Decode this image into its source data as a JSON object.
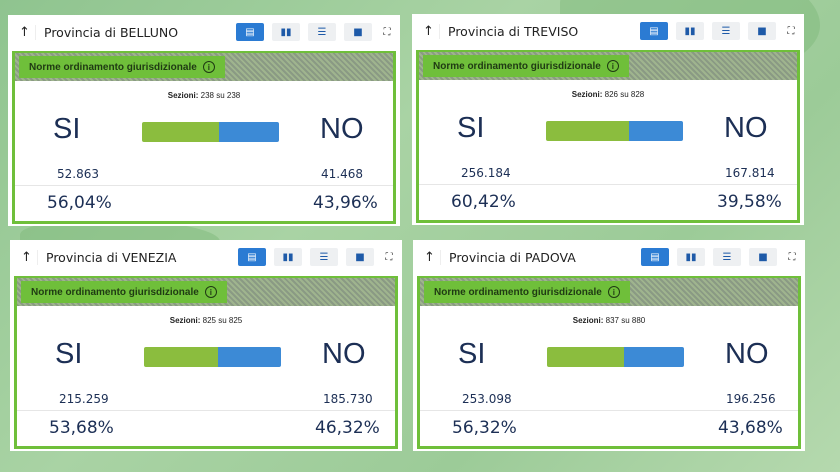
{
  "buttons": {
    "arrow": "↑",
    "full": "⛶"
  },
  "panels": [
    {
      "title": "Provincia di BELLUNO",
      "tag": "Norme ordinamento giurisdizionale",
      "sez_label": "Sezioni:",
      "sez_value": "238 su 238",
      "si": "SI",
      "no": "NO",
      "si_votes": "52.863",
      "no_votes": "41.468",
      "si_pct": "56,04%",
      "no_pct": "43,96%",
      "si_frac": 56.04
    },
    {
      "title": "Provincia di TREVISO",
      "tag": "Norme ordinamento giurisdizionale",
      "sez_label": "Sezioni:",
      "sez_value": "826 su 828",
      "si": "SI",
      "no": "NO",
      "si_votes": "256.184",
      "no_votes": "167.814",
      "si_pct": "60,42%",
      "no_pct": "39,58%",
      "si_frac": 60.42
    },
    {
      "title": "Provincia di VENEZIA",
      "tag": "Norme ordinamento giurisdizionale",
      "sez_label": "Sezioni:",
      "sez_value": "825 su 825",
      "si": "SI",
      "no": "NO",
      "si_votes": "215.259",
      "no_votes": "185.730",
      "si_pct": "53,68%",
      "no_pct": "46,32%",
      "si_frac": 53.68
    },
    {
      "title": "Provincia di PADOVA",
      "tag": "Norme ordinamento giurisdizionale",
      "sez_label": "Sezioni:",
      "sez_value": "837 su 880",
      "si": "SI",
      "no": "NO",
      "si_votes": "253.098",
      "no_votes": "196.256",
      "si_pct": "56,32%",
      "no_pct": "43,68%",
      "si_frac": 56.32
    }
  ],
  "colors": {
    "si": "#8bbd3e",
    "no": "#3c8ad6",
    "accent": "#6fbf3a",
    "active_button": "#2b7bd3"
  }
}
